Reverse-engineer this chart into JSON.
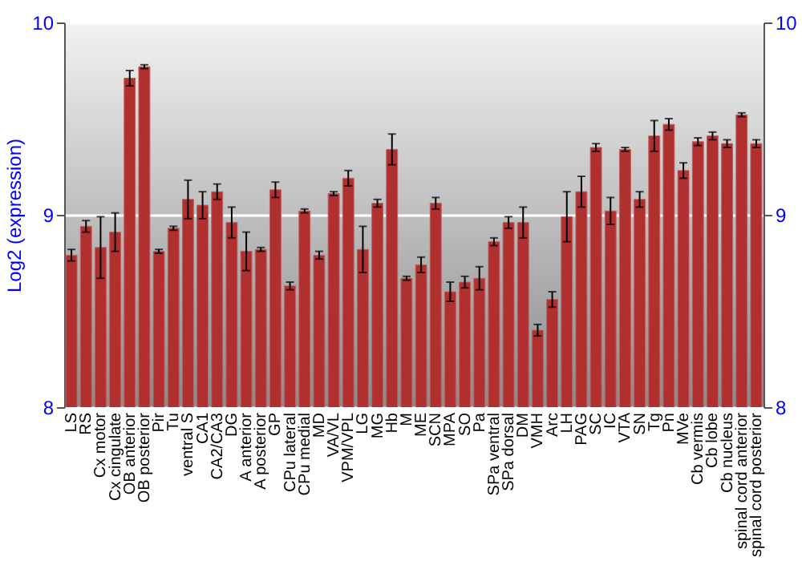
{
  "chart_data": {
    "type": "bar",
    "ylabel": "Log2 (expression)",
    "categories": [
      "LS",
      "RS",
      "Cx motor",
      "Cx cingulate",
      "OB anterior",
      "OB posterior",
      "Pir",
      "Tu",
      "ventral S",
      "CA1",
      "CA2/CA3",
      "DG",
      "A anterior",
      "A posterior",
      "GP",
      "CPu lateral",
      "CPu medial",
      "MD",
      "VA/VL",
      "VPM/VPL",
      "LG",
      "MG",
      "Hb",
      "M",
      "ME",
      "SCN",
      "MPA",
      "SO",
      "Pa",
      "SPa ventral",
      "SPa dorsal",
      "DM",
      "VMH",
      "Arc",
      "LH",
      "PAG",
      "SC",
      "IC",
      "VTA",
      "SN",
      "Tg",
      "Pn",
      "MVe",
      "Cb vermis",
      "Cb lobe",
      "Cb nucleus",
      "spinal cord anterior",
      "spinal cord posterior"
    ],
    "values": [
      8.79,
      8.94,
      8.83,
      8.91,
      9.71,
      9.77,
      8.81,
      8.93,
      9.08,
      9.05,
      9.12,
      8.96,
      8.81,
      8.82,
      9.13,
      8.63,
      9.02,
      8.79,
      9.11,
      9.19,
      8.82,
      9.06,
      9.34,
      8.67,
      8.74,
      9.06,
      8.6,
      8.65,
      8.67,
      8.86,
      8.96,
      8.96,
      8.4,
      8.56,
      8.99,
      9.12,
      9.35,
      9.02,
      9.34,
      9.08,
      9.41,
      9.47,
      9.23,
      9.38,
      9.41,
      9.37,
      9.52,
      9.37
    ],
    "errors": [
      0.03,
      0.03,
      0.16,
      0.1,
      0.04,
      0.01,
      0.01,
      0.01,
      0.1,
      0.07,
      0.04,
      0.08,
      0.1,
      0.01,
      0.04,
      0.02,
      0.01,
      0.02,
      0.01,
      0.04,
      0.12,
      0.02,
      0.08,
      0.01,
      0.04,
      0.03,
      0.05,
      0.03,
      0.06,
      0.02,
      0.03,
      0.08,
      0.03,
      0.04,
      0.13,
      0.08,
      0.02,
      0.07,
      0.01,
      0.04,
      0.08,
      0.03,
      0.04,
      0.02,
      0.02,
      0.02,
      0.01,
      0.02
    ],
    "color": "#b03030",
    "ylim": [
      8,
      10
    ],
    "yticks": [
      8,
      9,
      10
    ],
    "y2lim": [
      8,
      10
    ],
    "y2ticks": [
      8,
      9,
      10
    ],
    "grid": "y"
  }
}
